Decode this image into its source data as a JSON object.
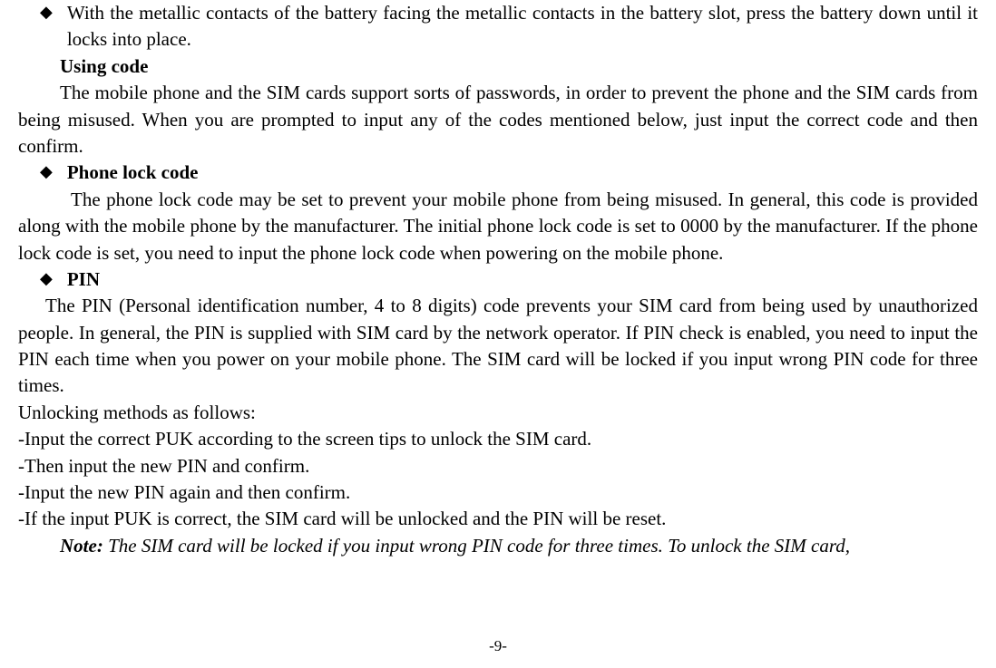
{
  "bullet1": "With the metallic contacts of the battery facing the metallic contacts in the battery slot, press the battery down until it locks into place.",
  "heading_using_code": "Using code",
  "para_using_code": "The mobile phone and the SIM cards support sorts of passwords, in order to prevent the phone and the SIM cards from being misused. When you are prompted to input any of the codes mentioned below, just input the correct code and then confirm.",
  "heading_phone_lock": "Phone lock code",
  "para_phone_lock": "The phone lock code may be set to prevent your mobile phone from being misused. In general, this code is provided along with the mobile phone by the manufacturer. The initial phone lock code is set to 0000 by the manufacturer. If the phone lock code is set, you need to input the phone lock code when powering on the mobile phone.",
  "heading_pin": "PIN",
  "para_pin": "The PIN (Personal identification number, 4 to 8 digits) code prevents your SIM card from being used by unauthorized people. In general, the PIN is supplied with SIM card by the network operator. If PIN check is enabled, you need to input the PIN each time when you power on your mobile phone. The SIM card will be locked if you input wrong PIN code for three times.",
  "unlock_intro": "Unlocking methods as follows:",
  "unlock_step1": "-Input the correct PUK according to the screen tips to unlock the SIM card.",
  "unlock_step2": "-Then input the new PIN and confirm.",
  "unlock_step3": "-Input the new PIN again and then confirm.",
  "unlock_step4": "-If the input PUK is correct, the SIM card will be unlocked and the PIN will be reset.",
  "note_label": "Note:",
  "note_text": " The SIM card will be locked if you input wrong PIN code for three times. To unlock the SIM card,",
  "page_number": "-9-"
}
